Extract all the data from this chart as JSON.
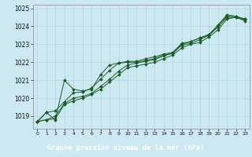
{
  "title": "Graphe pression niveau de la mer (hPa)",
  "bg_color": "#cce8f0",
  "label_bg": "#2d6e3e",
  "grid_color": "#b0d4de",
  "line_color": "#1a5c28",
  "x_ticks": [
    0,
    1,
    2,
    3,
    4,
    5,
    6,
    7,
    8,
    9,
    10,
    11,
    12,
    13,
    14,
    15,
    16,
    17,
    18,
    19,
    20,
    21,
    22,
    23
  ],
  "ylim": [
    1018.3,
    1025.2
  ],
  "yticks": [
    1019,
    1020,
    1021,
    1022,
    1023,
    1024,
    1025
  ],
  "series": [
    [
      1018.7,
      1019.2,
      1018.8,
      1021.0,
      1020.5,
      1020.4,
      1020.5,
      1021.3,
      1021.85,
      1021.95,
      1022.0,
      1022.0,
      1022.1,
      1022.2,
      1022.4,
      1022.5,
      1023.0,
      1023.15,
      1023.35,
      1023.5,
      1024.05,
      1024.65,
      1024.55,
      1024.4
    ],
    [
      1018.7,
      1019.2,
      1019.3,
      1019.8,
      1020.3,
      1020.35,
      1020.55,
      1021.05,
      1021.55,
      1021.95,
      1022.05,
      1022.05,
      1022.2,
      1022.3,
      1022.45,
      1022.55,
      1023.05,
      1023.15,
      1023.35,
      1023.55,
      1024.05,
      1024.55,
      1024.55,
      1024.4
    ],
    [
      1018.7,
      1018.8,
      1019.0,
      1019.7,
      1020.0,
      1020.1,
      1020.25,
      1020.65,
      1021.05,
      1021.5,
      1021.85,
      1021.95,
      1022.05,
      1022.15,
      1022.35,
      1022.5,
      1022.95,
      1023.05,
      1023.25,
      1023.5,
      1023.95,
      1024.5,
      1024.5,
      1024.35
    ],
    [
      1018.7,
      1018.8,
      1018.85,
      1019.65,
      1019.85,
      1020.0,
      1020.2,
      1020.5,
      1020.9,
      1021.3,
      1021.7,
      1021.8,
      1021.9,
      1022.0,
      1022.2,
      1022.4,
      1022.8,
      1023.0,
      1023.1,
      1023.4,
      1023.8,
      1024.4,
      1024.5,
      1024.3
    ]
  ]
}
